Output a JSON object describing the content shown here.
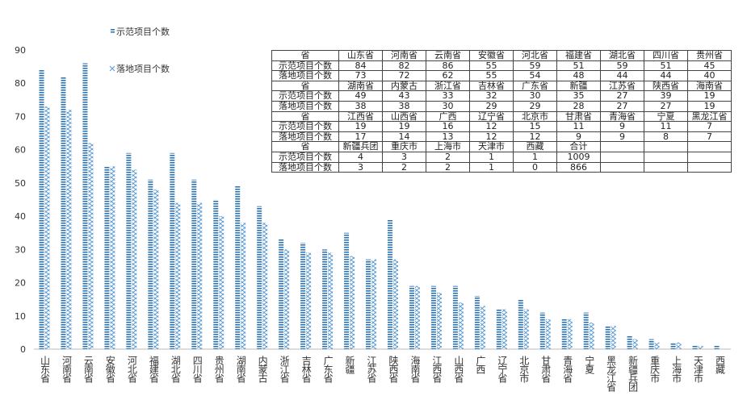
{
  "chart_data": {
    "type": "bar",
    "categories": [
      "山东省",
      "河南省",
      "云南省",
      "安徽省",
      "河北省",
      "福建省",
      "湖北省",
      "四川省",
      "贵州省",
      "湖南省",
      "内蒙古",
      "浙江省",
      "吉林省",
      "广东省",
      "新疆",
      "江苏省",
      "陕西省",
      "海南省",
      "江西省",
      "山西省",
      "广西",
      "辽宁省",
      "北京市",
      "甘肃省",
      "青海省",
      "宁夏",
      "黑龙江省",
      "新疆兵团",
      "重庆市",
      "上海市",
      "天津市",
      "西藏"
    ],
    "series": [
      {
        "name": "示范项目个数",
        "color": "#2e75b6",
        "values": [
          84,
          82,
          86,
          55,
          59,
          51,
          59,
          51,
          45,
          49,
          43,
          33,
          32,
          30,
          35,
          27,
          39,
          19,
          19,
          19,
          16,
          12,
          15,
          11,
          9,
          11,
          7,
          4,
          3,
          2,
          1,
          1
        ]
      },
      {
        "name": "落地项目个数",
        "color": "#5b9bd5",
        "values": [
          73,
          72,
          62,
          55,
          54,
          48,
          44,
          44,
          40,
          38,
          38,
          30,
          29,
          29,
          28,
          27,
          27,
          19,
          17,
          14,
          13,
          12,
          12,
          9,
          9,
          8,
          7,
          3,
          2,
          2,
          1,
          0
        ]
      }
    ],
    "ylim": [
      0,
      90
    ],
    "yticks": [
      0,
      10,
      20,
      30,
      40,
      50,
      60,
      70,
      80,
      90
    ],
    "grid": false
  },
  "table": {
    "header": "省",
    "total_label": "合计",
    "totals": [
      1009,
      866
    ]
  }
}
